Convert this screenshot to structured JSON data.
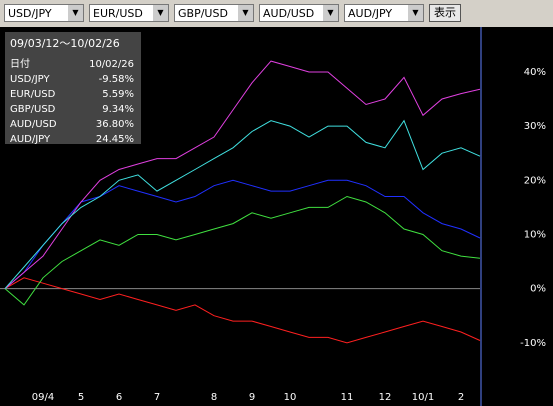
{
  "controls": {
    "selects": [
      "USD/JPY",
      "EUR/USD",
      "GBP/USD",
      "AUD/USD",
      "AUD/JPY"
    ],
    "button": "表示"
  },
  "chart_data": {
    "type": "line",
    "title": "09/03/12〜10/02/26",
    "date_label": "日付",
    "date_value": "10/02/26",
    "categories": [
      null,
      null,
      "09/4",
      null,
      "5",
      null,
      "6",
      null,
      "7",
      null,
      null,
      "8",
      null,
      "9",
      null,
      "10",
      null,
      null,
      "11",
      null,
      "12",
      null,
      "10/1",
      null,
      "2",
      null
    ],
    "series": [
      {
        "name": "USD/JPY",
        "color": "#ff2020",
        "latest": "-9.58%",
        "values": [
          0,
          2,
          1,
          0,
          -1,
          -2,
          -1,
          -2,
          -3,
          -4,
          -3,
          -5,
          -6,
          -6,
          -7,
          -8,
          -9,
          -9,
          -10,
          -9,
          -8,
          -7,
          -6,
          -7,
          -8,
          -9.58
        ]
      },
      {
        "name": "EUR/USD",
        "color": "#40e040",
        "latest": "5.59%",
        "values": [
          0,
          -3,
          2,
          5,
          7,
          9,
          8,
          10,
          10,
          9,
          10,
          11,
          12,
          14,
          13,
          14,
          15,
          15,
          17,
          16,
          14,
          11,
          10,
          7,
          6,
          5.59
        ]
      },
      {
        "name": "GBP/USD",
        "color": "#2030ff",
        "latest": "9.34%",
        "values": [
          0,
          3,
          8,
          12,
          16,
          17,
          19,
          18,
          17,
          16,
          17,
          19,
          20,
          19,
          18,
          18,
          19,
          20,
          20,
          19,
          17,
          17,
          14,
          12,
          11,
          9.34
        ]
      },
      {
        "name": "AUD/USD",
        "color": "#e040e0",
        "latest": "36.80%",
        "values": [
          0,
          3,
          6,
          11,
          16,
          20,
          22,
          23,
          24,
          24,
          26,
          28,
          33,
          38,
          42,
          41,
          40,
          40,
          37,
          34,
          35,
          39,
          32,
          35,
          36,
          36.8
        ]
      },
      {
        "name": "AUD/JPY",
        "color": "#40e0e0",
        "latest": "24.45%",
        "values": [
          0,
          4,
          8,
          12,
          15,
          17,
          20,
          21,
          18,
          20,
          22,
          24,
          26,
          29,
          31,
          30,
          28,
          30,
          30,
          27,
          26,
          31,
          22,
          25,
          26,
          24.45
        ]
      }
    ],
    "ylim": [
      -16.5,
      48.3
    ],
    "yticks": [
      {
        "value": -10,
        "label": "-10%"
      },
      {
        "value": 0,
        "label": "0%"
      },
      {
        "value": 10,
        "label": "10%"
      },
      {
        "value": 20,
        "label": "20%"
      },
      {
        "value": 30,
        "label": "30%"
      },
      {
        "value": 40,
        "label": "40%"
      }
    ]
  }
}
